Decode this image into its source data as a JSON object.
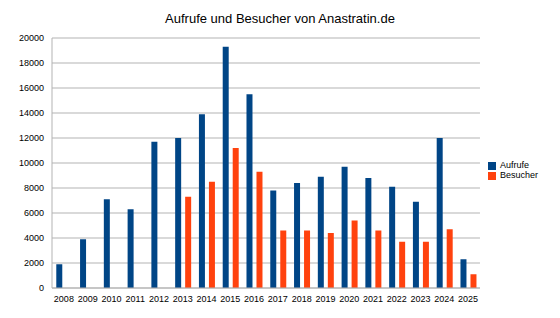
{
  "chart_data": {
    "type": "bar",
    "title": "Aufrufe und Besucher von Anastratin.de",
    "categories": [
      "2008",
      "2009",
      "2010",
      "2011",
      "2012",
      "2013",
      "2014",
      "2015",
      "2016",
      "2017",
      "2018",
      "2019",
      "2020",
      "2021",
      "2022",
      "2023",
      "2024",
      "2025"
    ],
    "series": [
      {
        "name": "Aufrufe",
        "color": "#004586",
        "values": [
          1900,
          3900,
          7100,
          6300,
          11700,
          12000,
          13900,
          19300,
          15500,
          7800,
          8400,
          8900,
          9700,
          8800,
          8100,
          6900,
          12000,
          2300
        ]
      },
      {
        "name": "Besucher",
        "color": "#ff420e",
        "values": [
          null,
          null,
          null,
          null,
          null,
          7300,
          8500,
          11200,
          9300,
          4600,
          4600,
          4400,
          5400,
          4600,
          3700,
          3700,
          4700,
          1100
        ]
      }
    ],
    "ylim": [
      0,
      20000
    ],
    "yticks": [
      0,
      2000,
      4000,
      6000,
      8000,
      10000,
      12000,
      14000,
      16000,
      18000,
      20000
    ],
    "grid": true,
    "legend": "right"
  }
}
